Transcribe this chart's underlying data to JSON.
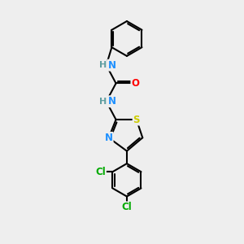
{
  "background_color": "#eeeeee",
  "atom_colors": {
    "C": "#000000",
    "N": "#1e90ff",
    "O": "#ff0000",
    "S": "#cccc00",
    "Cl": "#00aa00",
    "H_N": "#5f9ea0"
  },
  "bond_color": "#000000",
  "bond_width": 1.5,
  "font_size": 8.5,
  "fig_size": [
    3.0,
    3.0
  ],
  "dpi": 100
}
